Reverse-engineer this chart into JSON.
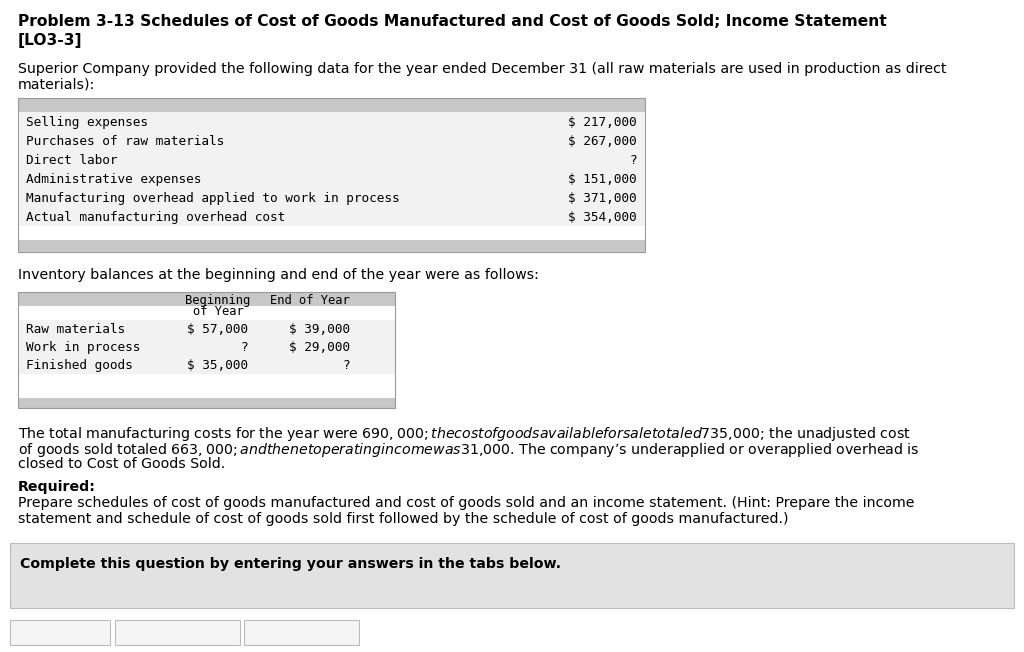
{
  "title_line1": "Problem 3-13 Schedules of Cost of Goods Manufactured and Cost of Goods Sold; Income Statement",
  "title_line2": "[LO3-3]",
  "intro_text1": "Superior Company provided the following data for the year ended December 31 (all raw materials are used in production as direct",
  "intro_text2": "materials):",
  "table1_rows": [
    [
      "Selling expenses",
      "$ 217,000"
    ],
    [
      "Purchases of raw materials",
      "$ 267,000"
    ],
    [
      "Direct labor",
      "?"
    ],
    [
      "Administrative expenses",
      "$ 151,000"
    ],
    [
      "Manufacturing overhead applied to work in process",
      "$ 371,000"
    ],
    [
      "Actual manufacturing overhead cost",
      "$ 354,000"
    ]
  ],
  "inventory_intro": "Inventory balances at the beginning and end of the year were as follows:",
  "table2_rows": [
    [
      "Raw materials",
      "$ 57,000",
      "$ 39,000"
    ],
    [
      "Work in process",
      "?",
      "$ 29,000"
    ],
    [
      "Finished goods",
      "$ 35,000",
      "?"
    ]
  ],
  "body_text1": "The total manufacturing costs for the year were $690,000; the cost of goods available for sale totaled $735,000; the unadjusted cost",
  "body_text2": "of goods sold totaled $663,000; and the net operating income was $31,000. The company’s underapplied or overapplied overhead is",
  "body_text3": "closed to Cost of Goods Sold.",
  "required_label": "Required:",
  "required_text1": "Prepare schedules of cost of goods manufactured and cost of goods sold and an income statement. (Hint: Prepare the income",
  "required_text2": "statement and schedule of cost of goods sold first followed by the schedule of cost of goods manufactured.)",
  "footer_text": "Complete this question by entering your answers in the tabs below.",
  "bg_color": "#ffffff",
  "table_header_bg": "#c8c8c8",
  "table_row_bg": "#f2f2f2",
  "table_border": "#999999",
  "footer_bg": "#e2e2e2",
  "footer_border": "#bbbbbb",
  "tab_bg": "#f5f5f5",
  "tab_border": "#bbbbbb",
  "title_fontsize": 11.2,
  "body_fontsize": 10.2,
  "mono_fontsize": 9.2
}
